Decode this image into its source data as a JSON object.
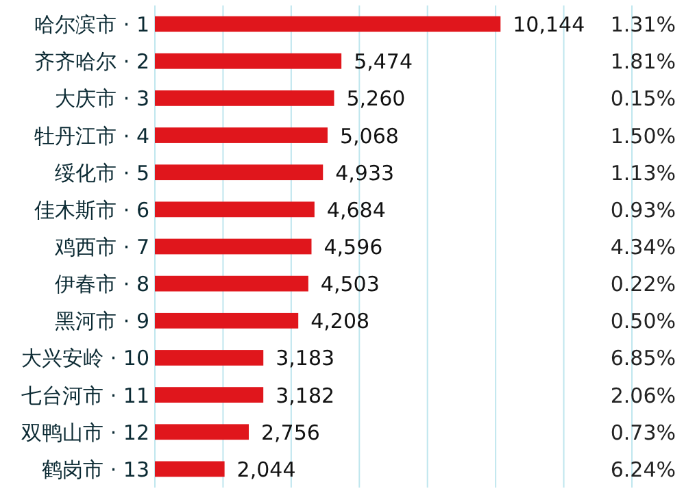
{
  "chart_data": {
    "type": "bar",
    "orientation": "horizontal",
    "categories": [
      "哈尔滨市 · 1",
      "齐齐哈尔 · 2",
      "大庆市 · 3",
      "牡丹江市 · 4",
      "绥化市 · 5",
      "佳木斯市 · 6",
      "鸡西市 · 7",
      "伊春市 · 8",
      "黑河市 · 9",
      "大兴安岭 · 10",
      "七台河市 · 11",
      "双鸭山市 · 12",
      "鹤岗市 · 13"
    ],
    "series": [
      {
        "color": "#e0161c",
        "values": [
          10144,
          5474,
          5260,
          5068,
          4933,
          4684,
          4596,
          4503,
          4208,
          3183,
          3182,
          2756,
          2044
        ],
        "value_labels": [
          "10,144",
          "5,474",
          "5,260",
          "5,068",
          "4,933",
          "4,684",
          "4,596",
          "4,503",
          "4,208",
          "3,183",
          "3,182",
          "2,756",
          "2,044"
        ]
      }
    ],
    "xlim": [
      0,
      14000
    ],
    "xticks": [
      {
        "value": 0,
        "label": null
      },
      {
        "value": 2000,
        "label": null
      },
      {
        "value": 4000,
        "label": null
      },
      {
        "value": 6000,
        "label": null
      },
      {
        "value": 8000,
        "label": null
      },
      {
        "value": 10000,
        "label": null
      },
      {
        "value": 12000,
        "label": null
      },
      {
        "value": 14000,
        "label": null
      }
    ],
    "grid": "x",
    "annotations": [
      "1.31%",
      "1.81%",
      "0.15%",
      "1.50%",
      "1.13%",
      "0.93%",
      "4.34%",
      "0.22%",
      "0.50%",
      "6.85%",
      "2.06%",
      "0.73%",
      "6.24%"
    ]
  }
}
